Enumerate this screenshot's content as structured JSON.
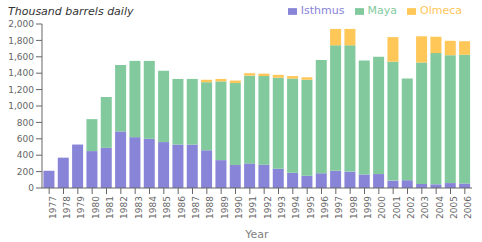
{
  "chart_data": {
    "type": "bar",
    "stacked": true,
    "xlabel": "Year",
    "ylabel": "Thousand barrels daily",
    "categories": [
      "1977",
      "1978",
      "1979",
      "1980",
      "1981",
      "1982",
      "1983",
      "1984",
      "1985",
      "1986",
      "1987",
      "1988",
      "1989",
      "1990",
      "1991",
      "1992",
      "1993",
      "1994",
      "1995",
      "1996",
      "1997",
      "1998",
      "1999",
      "2000",
      "2001",
      "2002",
      "2003",
      "2004",
      "2005",
      "2006"
    ],
    "series": [
      {
        "name": "Isthmus",
        "color": "#8884d8",
        "values": [
          210,
          370,
          530,
          450,
          490,
          690,
          620,
          600,
          560,
          530,
          530,
          460,
          340,
          280,
          300,
          285,
          235,
          185,
          150,
          180,
          210,
          200,
          165,
          170,
          90,
          95,
          50,
          45,
          60,
          55
        ]
      },
      {
        "name": "Maya",
        "color": "#82ca9d",
        "values": [
          0,
          0,
          0,
          390,
          620,
          810,
          930,
          950,
          870,
          800,
          800,
          830,
          960,
          1000,
          1070,
          1080,
          1110,
          1150,
          1170,
          1380,
          1530,
          1540,
          1390,
          1430,
          1450,
          1240,
          1480,
          1600,
          1560,
          1570
        ]
      },
      {
        "name": "Olmeca",
        "color": "#ffc658",
        "values": [
          0,
          0,
          0,
          0,
          0,
          0,
          0,
          0,
          0,
          0,
          0,
          30,
          30,
          30,
          30,
          30,
          35,
          30,
          30,
          0,
          200,
          200,
          0,
          0,
          300,
          0,
          320,
          200,
          175,
          165
        ]
      }
    ],
    "ylim": [
      0,
      2000
    ],
    "yticks": [
      0,
      200,
      400,
      600,
      800,
      {
        "value": 1000,
        "label": "1,000"
      },
      {
        "value": 1200,
        "label": "1,200"
      },
      {
        "value": 1400,
        "label": "1,400"
      },
      {
        "value": 1600,
        "label": "1,600"
      },
      {
        "value": 1800,
        "label": "1,800"
      },
      {
        "value": 2000,
        "label": "2,000"
      }
    ],
    "grid": false,
    "legend": "top right"
  }
}
